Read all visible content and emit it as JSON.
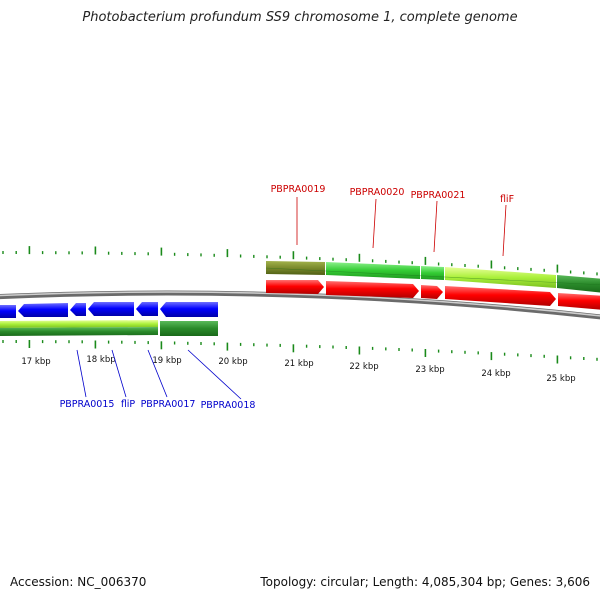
{
  "title": "Photobacterium profundum SS9 chromosome 1, complete genome",
  "footer": {
    "accession": "Accession: NC_006370",
    "summary": "Topology: circular; Length: 4,085,304 bp; Genes: 3,606"
  },
  "colors": {
    "forward_gene": "#ff0000",
    "reverse_gene": "#0000ff",
    "tick": "#1a8a1a",
    "label_forward": "#cc0000",
    "label_reverse": "#0000cc"
  },
  "chart_data": {
    "type": "genome-map",
    "scale_labels": [
      "17 kbp",
      "18 kbp",
      "19 kbp",
      "20 kbp",
      "21 kbp",
      "22 kbp",
      "23 kbp",
      "24 kbp",
      "25 kbp"
    ],
    "forward_labels": [
      "PBPRA0019",
      "PBPRA0020",
      "PBPRA0021",
      "fliF"
    ],
    "reverse_labels": [
      "PBPRA0015",
      "fliP",
      "PBPRA0017",
      "PBPRA0018"
    ]
  }
}
